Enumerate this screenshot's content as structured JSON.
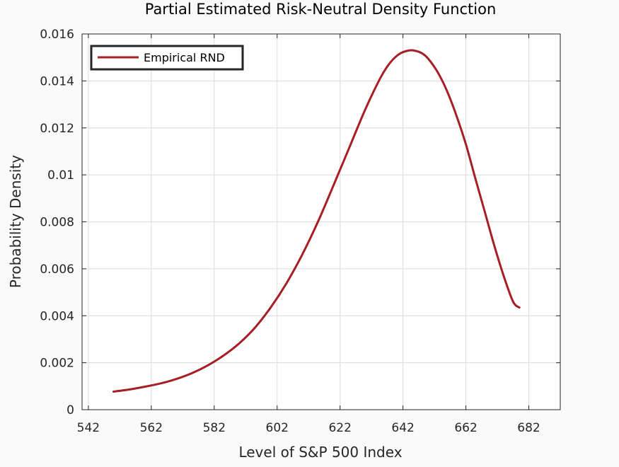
{
  "chart_data": {
    "type": "line",
    "title": "Partial Estimated Risk-Neutral Density Function",
    "xlabel": "Level of S&P 500 Index",
    "ylabel": "Probability Density",
    "xlim": [
      540,
      692
    ],
    "ylim": [
      0,
      0.016
    ],
    "xticks": [
      542,
      562,
      582,
      602,
      622,
      642,
      662,
      682
    ],
    "yticks": [
      0,
      0.002,
      0.004,
      0.006,
      0.008,
      0.01,
      0.012,
      0.014,
      0.016
    ],
    "ytick_labels": [
      "0",
      "0.002",
      "0.004",
      "0.006",
      "0.008",
      "0.01",
      "0.012",
      "0.014",
      "0.016"
    ],
    "grid": true,
    "legend_position": "top-left",
    "series": [
      {
        "name": "Empirical RND",
        "color": "#a81e25",
        "x": [
          550,
          555,
          560,
          565,
          570,
          575,
          580,
          585,
          590,
          595,
          600,
          605,
          610,
          615,
          620,
          625,
          630,
          635,
          638,
          641,
          644,
          646,
          648,
          650,
          653,
          656,
          659,
          662,
          665,
          668,
          671,
          674,
          677,
          679
        ],
        "y": [
          0.00077,
          0.00086,
          0.00098,
          0.00112,
          0.00131,
          0.00156,
          0.00189,
          0.00231,
          0.00283,
          0.0035,
          0.00436,
          0.00539,
          0.00661,
          0.00801,
          0.00958,
          0.01118,
          0.01278,
          0.01417,
          0.01479,
          0.01516,
          0.0153,
          0.01528,
          0.01518,
          0.01495,
          0.01438,
          0.01357,
          0.01252,
          0.0113,
          0.00985,
          0.00843,
          0.007,
          0.0057,
          0.0046,
          0.00435
        ]
      }
    ]
  }
}
